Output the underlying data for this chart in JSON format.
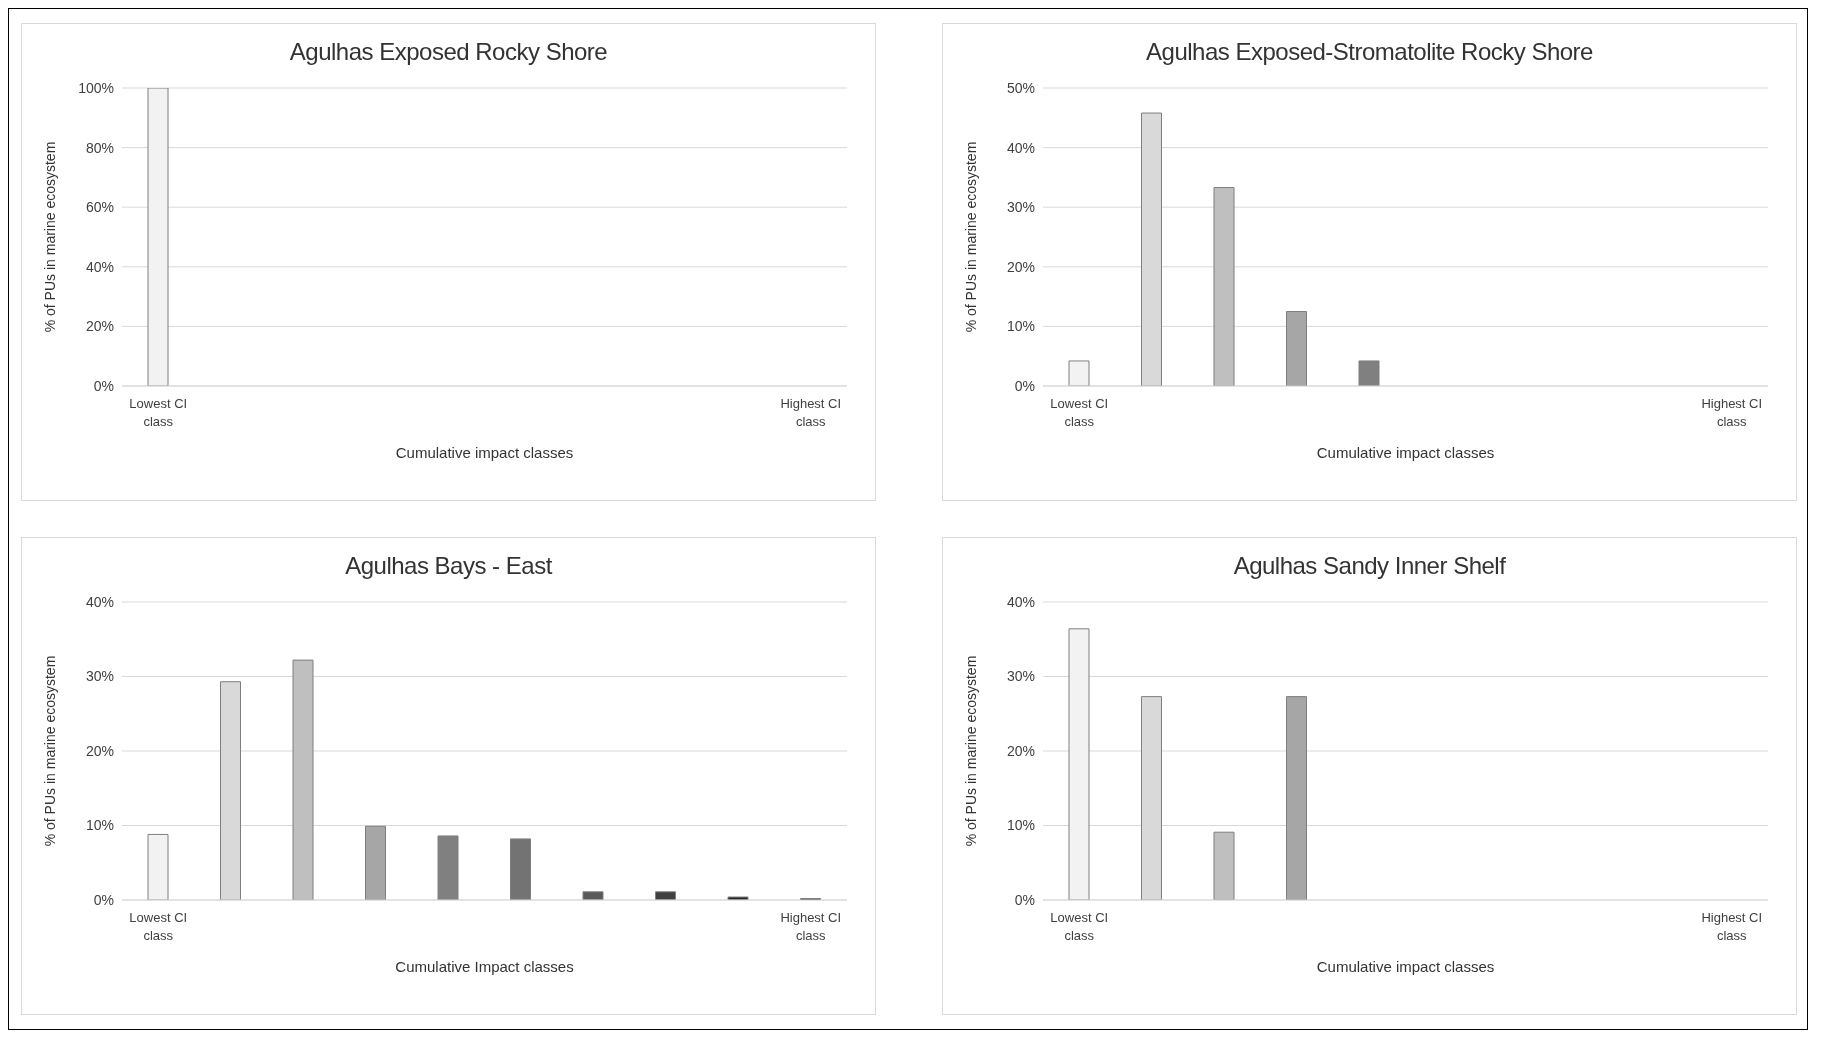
{
  "chart_data": [
    {
      "type": "bar",
      "title": "Agulhas Exposed Rocky Shore",
      "xlabel": "Cumulative  impact  classes",
      "ylabel": "% of PUs in  marine ecosystem",
      "categories": [
        "Lowest CI class",
        null,
        null,
        null,
        null,
        null,
        null,
        null,
        null,
        "Highest CI class"
      ],
      "values": [
        100,
        0,
        0,
        0,
        0,
        0,
        0,
        0,
        0,
        0
      ],
      "colors": [
        "#f2f2f2",
        "#d9d9d9",
        "#bfbfbf",
        "#a6a6a6",
        "#808080",
        "#737373",
        "#595959",
        "#404040",
        "#262626",
        "#0d0d0d"
      ],
      "ylim": [
        0,
        100
      ],
      "yticks": [
        {
          "value": 0,
          "label": "0%"
        },
        {
          "value": 20,
          "label": "20%"
        },
        {
          "value": 40,
          "label": "40%"
        },
        {
          "value": 60,
          "label": "60%"
        },
        {
          "value": 80,
          "label": "80%"
        },
        {
          "value": 100,
          "label": "100%"
        }
      ],
      "grid": "y",
      "legend": false
    },
    {
      "type": "bar",
      "title": "Agulhas Exposed-Stromatolite Rocky Shore",
      "xlabel": "Cumulative  impact  classes",
      "ylabel": "% of PUs in  marine ecosystem",
      "categories": [
        "Lowest CI class",
        null,
        null,
        null,
        null,
        null,
        null,
        null,
        null,
        "Highest CI class"
      ],
      "values": [
        4.2,
        45.8,
        33.3,
        12.5,
        4.2,
        0,
        0,
        0,
        0,
        0
      ],
      "colors": [
        "#f2f2f2",
        "#d9d9d9",
        "#bfbfbf",
        "#a6a6a6",
        "#808080",
        "#737373",
        "#595959",
        "#404040",
        "#262626",
        "#0d0d0d"
      ],
      "ylim": [
        0,
        50
      ],
      "yticks": [
        {
          "value": 0,
          "label": "0%"
        },
        {
          "value": 10,
          "label": "10%"
        },
        {
          "value": 20,
          "label": "20%"
        },
        {
          "value": 30,
          "label": "30%"
        },
        {
          "value": 40,
          "label": "40%"
        },
        {
          "value": 50,
          "label": "50%"
        }
      ],
      "grid": "y",
      "legend": false
    },
    {
      "type": "bar",
      "title": "Agulhas Bays - East",
      "xlabel": "Cumulative  Impact  classes",
      "ylabel": "% of PUs in  marine ecosystem",
      "categories": [
        "Lowest CI class",
        null,
        null,
        null,
        null,
        null,
        null,
        null,
        null,
        "Highest CI class"
      ],
      "values": [
        8.8,
        29.3,
        32.2,
        9.9,
        8.6,
        8.2,
        1.1,
        1.1,
        0.4,
        0.2
      ],
      "colors": [
        "#f2f2f2",
        "#d9d9d9",
        "#bfbfbf",
        "#a6a6a6",
        "#808080",
        "#737373",
        "#595959",
        "#404040",
        "#262626",
        "#0d0d0d"
      ],
      "ylim": [
        0,
        40
      ],
      "yticks": [
        {
          "value": 0,
          "label": "0%"
        },
        {
          "value": 10,
          "label": "10%"
        },
        {
          "value": 20,
          "label": "20%"
        },
        {
          "value": 30,
          "label": "30%"
        },
        {
          "value": 40,
          "label": "40%"
        }
      ],
      "grid": "y",
      "legend": false
    },
    {
      "type": "bar",
      "title": "Agulhas Sandy Inner Shelf",
      "xlabel": "Cumulative  impact  classes",
      "ylabel": "% of PUs in  marine ecosystem",
      "categories": [
        "Lowest CI class",
        null,
        null,
        null,
        null,
        null,
        null,
        null,
        null,
        "Highest CI class"
      ],
      "values": [
        36.4,
        27.3,
        9.1,
        27.3,
        0,
        0,
        0,
        0,
        0,
        0
      ],
      "colors": [
        "#f2f2f2",
        "#d9d9d9",
        "#bfbfbf",
        "#a6a6a6",
        "#808080",
        "#737373",
        "#595959",
        "#404040",
        "#262626",
        "#0d0d0d"
      ],
      "ylim": [
        0,
        40
      ],
      "yticks": [
        {
          "value": 0,
          "label": "0%"
        },
        {
          "value": 10,
          "label": "10%"
        },
        {
          "value": 20,
          "label": "20%"
        },
        {
          "value": 30,
          "label": "30%"
        },
        {
          "value": 40,
          "label": "40%"
        }
      ],
      "grid": "y",
      "legend": false
    }
  ]
}
